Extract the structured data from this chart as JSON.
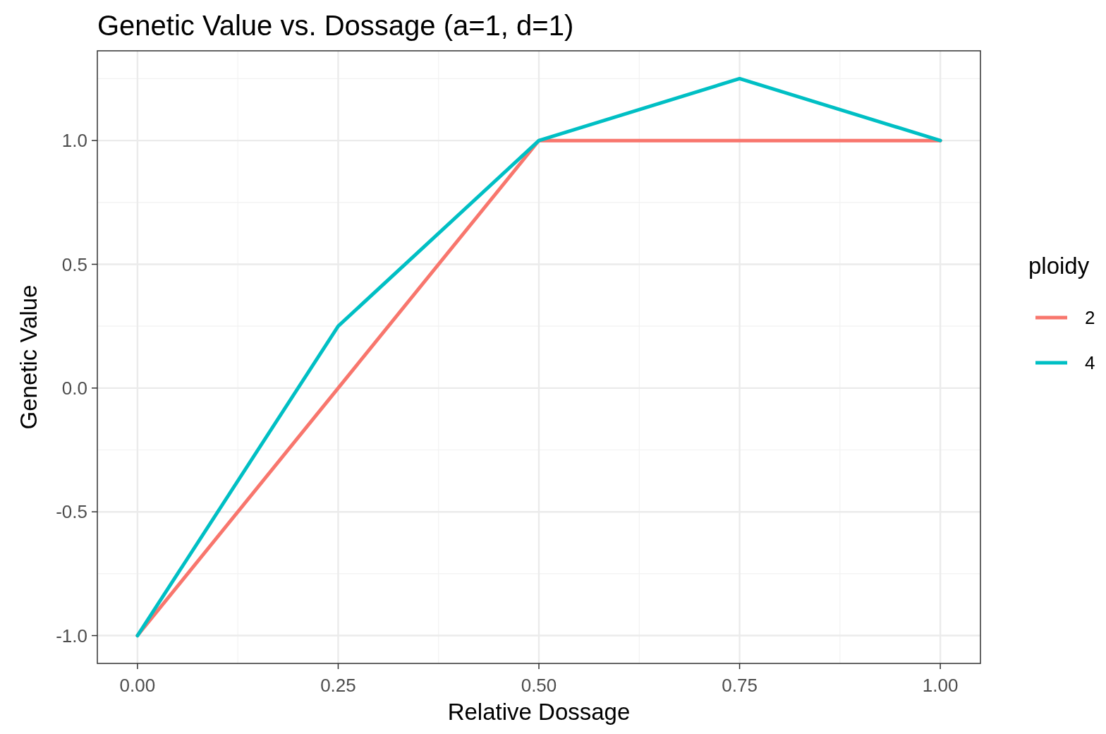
{
  "chart_data": {
    "type": "line",
    "title": "Genetic Value vs. Dossage (a=1, d=1)",
    "xlabel": "Relative Dossage",
    "ylabel": "Genetic Value",
    "legend_title": "ploidy",
    "legend": "right",
    "grid": true,
    "line_style": "solid",
    "x": [
      0,
      0.25,
      0.5,
      0.75,
      1
    ],
    "xlim": [
      -0.05,
      1.05
    ],
    "ylim": [
      -1.1125,
      1.3625
    ],
    "xticks": [
      {
        "value": 0,
        "label": "0.00"
      },
      {
        "value": 0.25,
        "label": "0.25"
      },
      {
        "value": 0.5,
        "label": "0.50"
      },
      {
        "value": 0.75,
        "label": "0.75"
      },
      {
        "value": 1,
        "label": "1.00"
      }
    ],
    "yticks": [
      {
        "value": -1,
        "label": "-1.0"
      },
      {
        "value": -0.5,
        "label": "-0.5"
      },
      {
        "value": 0,
        "label": "0.0"
      },
      {
        "value": 0.5,
        "label": "0.5"
      },
      {
        "value": 1,
        "label": "1.0"
      }
    ],
    "series": [
      {
        "name": "2",
        "color": "#f8766d",
        "values": [
          -1,
          0,
          1,
          1,
          1
        ]
      },
      {
        "name": "4",
        "color": "#00bfc4",
        "values": [
          -1,
          0.25,
          1,
          1.25,
          1
        ]
      }
    ]
  }
}
